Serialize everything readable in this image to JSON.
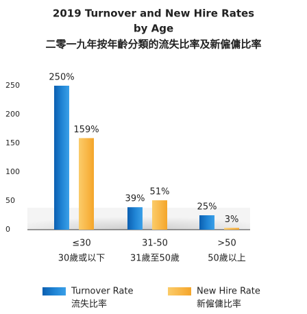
{
  "chart_data": {
    "type": "bar",
    "title": "2019 Turnover and New Hire Rates",
    "title_line2": "by Age",
    "title_zh": "二零一九年按年齡分類的流失比率及新僱傭比率",
    "categories": [
      "≤30",
      "31-50",
      ">50"
    ],
    "categories_zh": [
      "30歲或以下",
      "31歲至50歲",
      "50歲以上"
    ],
    "series": [
      {
        "name": "Turnover Rate",
        "name_zh": "流失比率",
        "color": "#1f83d4",
        "values": [
          250,
          39,
          25
        ],
        "value_labels": [
          "250%",
          "39%",
          "25%"
        ]
      },
      {
        "name": "New Hire Rate",
        "name_zh": "新僱傭比率",
        "color": "#f8b544",
        "values": [
          159,
          51,
          3
        ],
        "value_labels": [
          "159%",
          "51%",
          "3%"
        ]
      }
    ],
    "ylim": [
      0,
      250
    ],
    "yticks": [
      0,
      50,
      100,
      150,
      200,
      250
    ]
  }
}
